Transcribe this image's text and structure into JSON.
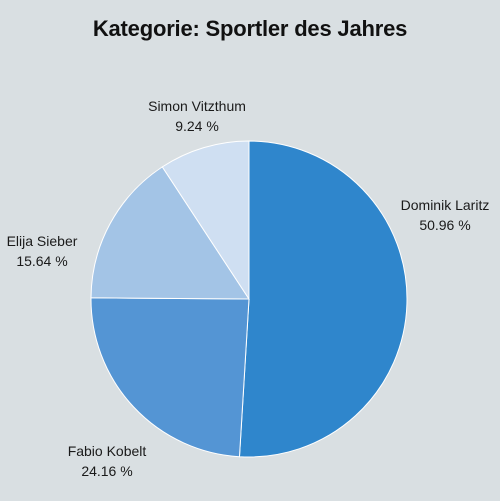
{
  "chart_data": {
    "type": "pie",
    "title": "Kategorie: Sportler des Jahres",
    "start_angle_deg": 0,
    "direction": "clockwise",
    "slices": [
      {
        "name": "Dominik Laritz",
        "value": 50.96,
        "label": "50.96 %",
        "color": "#2f86cc"
      },
      {
        "name": "Fabio Kobelt",
        "value": 24.16,
        "label": "24.16 %",
        "color": "#5495d4"
      },
      {
        "name": "Elija Sieber",
        "value": 15.64,
        "label": "15.64 %",
        "color": "#a3c4e6"
      },
      {
        "name": "Simon Vitzthum",
        "value": 9.24,
        "label": "9.24 %",
        "color": "#cfdff2"
      }
    ]
  }
}
